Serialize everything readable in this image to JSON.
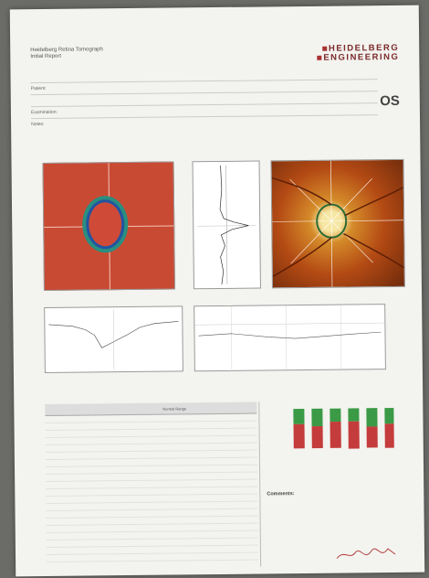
{
  "header": {
    "title_line1": "Heidelberg Retina Tomograph",
    "title_line2": "Initial Report",
    "logo_line1": "HEIDELBERG",
    "logo_line2": "ENGINEERING",
    "eye": "OS"
  },
  "info_rows": [
    {
      "label": "Patient:",
      "value": ""
    },
    {
      "label": "",
      "value": ""
    },
    {
      "label": "Examination:",
      "value": ""
    },
    {
      "label": "Notes:",
      "value": ""
    }
  ],
  "table": {
    "col1": "",
    "col2": "Normal Range"
  },
  "right": {
    "classification_title": "",
    "comment_title": "Comments:"
  },
  "colors": {
    "heat": "#c94a33",
    "ring": "#2a8f7f",
    "bar_green": "#3a9a45",
    "bar_red": "#c43c3c"
  },
  "bar_levels": [
    {
      "green": 0.35,
      "red": 0.55
    },
    {
      "green": 0.4,
      "red": 0.5
    },
    {
      "green": 0.3,
      "red": 0.6
    },
    {
      "green": 0.3,
      "red": 0.62
    },
    {
      "green": 0.42,
      "red": 0.48
    },
    {
      "green": 0.36,
      "red": 0.55
    }
  ]
}
